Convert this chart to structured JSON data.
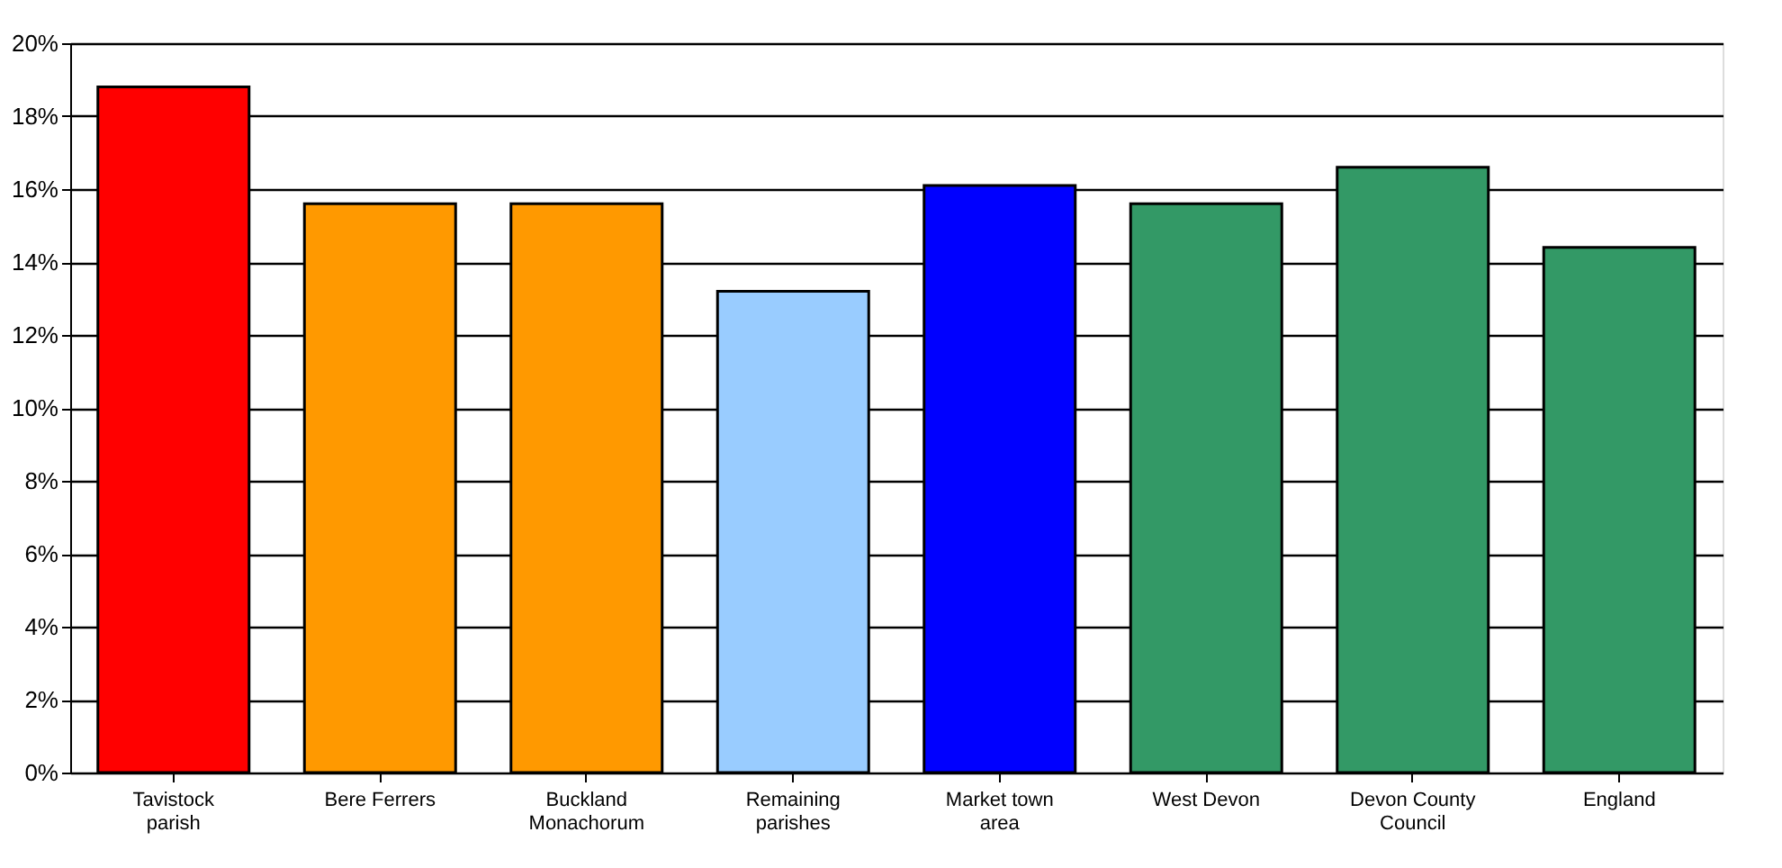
{
  "chart_data": {
    "type": "bar",
    "categories": [
      "Tavistock parish",
      "Bere Ferrers",
      "Buckland Monachorum",
      "Remaining parishes",
      "Market town area",
      "West Devon",
      "Devon County Council",
      "England"
    ],
    "values": [
      18.8,
      15.6,
      15.6,
      13.2,
      16.1,
      15.6,
      16.6,
      14.4
    ],
    "colors": [
      "#ff0000",
      "#ff9900",
      "#ff9900",
      "#99ccff",
      "#0000ff",
      "#339966",
      "#339966",
      "#339966"
    ],
    "ylim": [
      0,
      20
    ],
    "yticks": [
      {
        "value": 0,
        "label": "0%"
      },
      {
        "value": 2,
        "label": "2%"
      },
      {
        "value": 4,
        "label": "4%"
      },
      {
        "value": 6,
        "label": "6%"
      },
      {
        "value": 8,
        "label": "8%"
      },
      {
        "value": 10,
        "label": "10%"
      },
      {
        "value": 12,
        "label": "12%"
      },
      {
        "value": 14,
        "label": "14%"
      },
      {
        "value": 16,
        "label": "16%"
      },
      {
        "value": 18,
        "label": "18%"
      },
      {
        "value": 20,
        "label": "20%"
      }
    ],
    "grid": "y"
  }
}
